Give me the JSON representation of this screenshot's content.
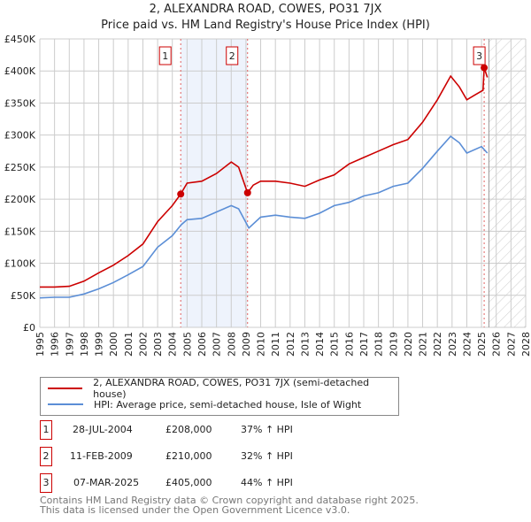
{
  "chart_data": {
    "type": "line",
    "title": "2, ALEXANDRA ROAD, COWES, PO31 7JX",
    "subtitle": "Price paid vs. HM Land Registry's House Price Index (HPI)",
    "xlabel": "",
    "ylabel": "",
    "xlim": [
      1995,
      2028
    ],
    "ylim": [
      0,
      450000
    ],
    "grid": true,
    "x_ticks": [
      "1995",
      "1996",
      "1997",
      "1998",
      "1999",
      "2000",
      "2001",
      "2002",
      "2003",
      "2004",
      "2005",
      "2006",
      "2007",
      "2008",
      "2009",
      "2010",
      "2011",
      "2012",
      "2013",
      "2014",
      "2015",
      "2016",
      "2017",
      "2018",
      "2019",
      "2020",
      "2021",
      "2022",
      "2023",
      "2024",
      "2025",
      "2026",
      "2027",
      "2028"
    ],
    "y_ticks": [
      "£0",
      "£50K",
      "£100K",
      "£150K",
      "£200K",
      "£250K",
      "£300K",
      "£350K",
      "£400K",
      "£450K"
    ],
    "shaded_band": [
      2004.57,
      2009.11
    ],
    "forecast_hatch_from": 2025.5,
    "series": [
      {
        "name": "2, ALEXANDRA ROAD, COWES, PO31 7JX (semi-detached house)",
        "color": "#cc0000",
        "x": [
          1995,
          1996,
          1997,
          1998,
          1999,
          2000,
          2001,
          2002,
          2003,
          2004,
          2004.57,
          2005,
          2006,
          2007,
          2008,
          2008.5,
          2009.11,
          2009.5,
          2010,
          2011,
          2012,
          2013,
          2014,
          2015,
          2016,
          2017,
          2018,
          2019,
          2020,
          2021,
          2022,
          2022.9,
          2023.5,
          2024,
          2024.5,
          2025.1,
          2025.18,
          2025.4
        ],
        "values": [
          63000,
          63000,
          64000,
          72000,
          85000,
          97000,
          112000,
          130000,
          165000,
          190000,
          208000,
          225000,
          228000,
          240000,
          258000,
          250000,
          210000,
          222000,
          228000,
          228000,
          225000,
          220000,
          230000,
          238000,
          255000,
          265000,
          275000,
          285000,
          293000,
          320000,
          355000,
          392000,
          375000,
          355000,
          362000,
          370000,
          405000,
          390000
        ]
      },
      {
        "name": "HPI: Average price, semi-detached house, Isle of Wight",
        "color": "#5b8ed6",
        "x": [
          1995,
          1996,
          1997,
          1998,
          1999,
          2000,
          2001,
          2002,
          2003,
          2004,
          2004.6,
          2005,
          2006,
          2007,
          2008,
          2008.5,
          2009.2,
          2010,
          2011,
          2012,
          2013,
          2014,
          2015,
          2016,
          2017,
          2018,
          2019,
          2020,
          2021,
          2022,
          2022.9,
          2023.5,
          2024,
          2025,
          2025.4
        ],
        "values": [
          46000,
          47000,
          47000,
          52000,
          60000,
          70000,
          82000,
          95000,
          125000,
          143000,
          160000,
          168000,
          170000,
          180000,
          190000,
          185000,
          155000,
          172000,
          175000,
          172000,
          170000,
          178000,
          190000,
          195000,
          205000,
          210000,
          220000,
          225000,
          248000,
          275000,
          298000,
          288000,
          272000,
          282000,
          272000
        ]
      }
    ],
    "sales": [
      {
        "label": "1",
        "x": 2004.57,
        "value": 208000
      },
      {
        "label": "2",
        "x": 2009.11,
        "value": 210000
      },
      {
        "label": "3",
        "x": 2025.18,
        "value": 405000
      }
    ]
  },
  "legend": {
    "property": "2, ALEXANDRA ROAD, COWES, PO31 7JX (semi-detached house)",
    "hpi": "HPI: Average price, semi-detached house, Isle of Wight"
  },
  "transactions": [
    {
      "num": "1",
      "date": "28-JUL-2004",
      "price": "£208,000",
      "hpi": "37% ↑ HPI"
    },
    {
      "num": "2",
      "date": "11-FEB-2009",
      "price": "£210,000",
      "hpi": "32% ↑ HPI"
    },
    {
      "num": "3",
      "date": "07-MAR-2025",
      "price": "£405,000",
      "hpi": "44% ↑ HPI"
    }
  ],
  "footer": {
    "line1": "Contains HM Land Registry data © Crown copyright and database right 2025.",
    "line2": "This data is licensed under the Open Government Licence v3.0."
  }
}
